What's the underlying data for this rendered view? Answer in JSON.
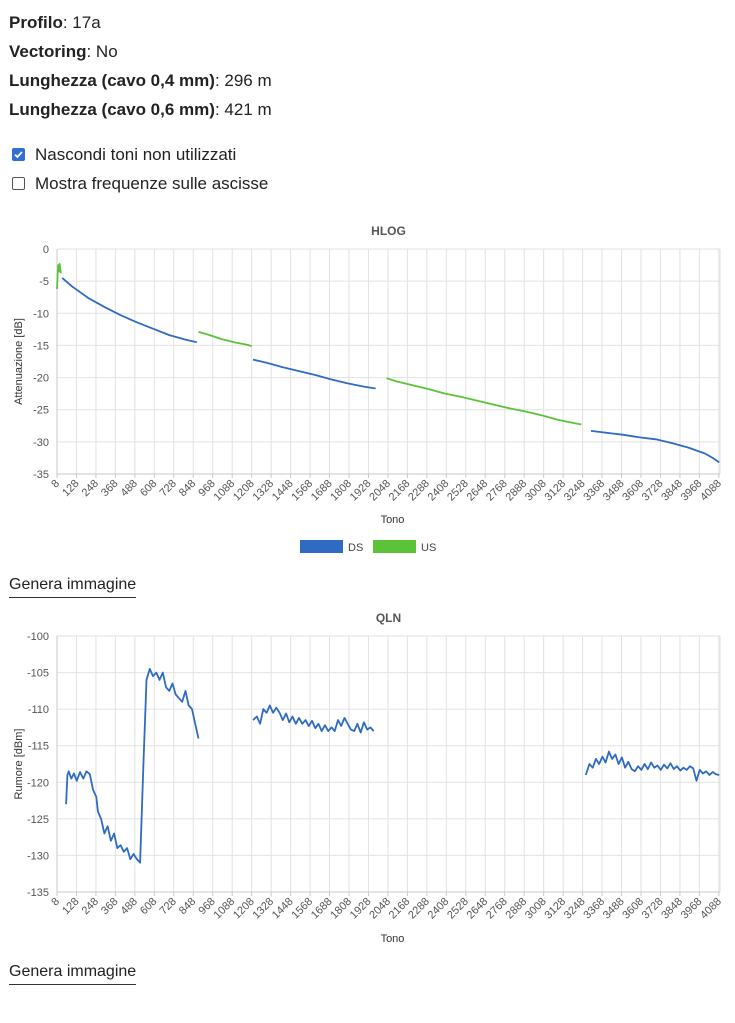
{
  "info": {
    "profile_label": "Profilo",
    "profile_value": "17a",
    "vectoring_label": "Vectoring",
    "vectoring_value": "No",
    "len04_label": "Lunghezza (cavo 0,4 mm)",
    "len04_value": "296 m",
    "len06_label": "Lunghezza (cavo 0,6 mm)",
    "len06_value": "421 m"
  },
  "options": {
    "hide_unused": {
      "label": "Nascondi toni non utilizzati",
      "checked": true
    },
    "show_freq": {
      "label": "Mostra frequenze sulle ascisse",
      "checked": false
    }
  },
  "buttons": {
    "generate_image": "Genera immagine"
  },
  "colors": {
    "ds": "#2f6bc0",
    "us": "#5cc23a"
  },
  "chart_data": [
    {
      "type": "line",
      "title": "HLOG",
      "xlabel": "Tono",
      "ylabel": "Attenuazione [dB]",
      "xlim": [
        8,
        4095
      ],
      "ylim": [
        -35,
        0
      ],
      "yticks": [
        0,
        -5,
        -10,
        -15,
        -20,
        -25,
        -30,
        -35
      ],
      "xticks": [
        8,
        128,
        248,
        368,
        488,
        608,
        728,
        848,
        968,
        1088,
        1208,
        1328,
        1448,
        1568,
        1688,
        1808,
        1928,
        2048,
        2168,
        2288,
        2408,
        2528,
        2648,
        2768,
        2888,
        3008,
        3128,
        3248,
        3368,
        3488,
        3608,
        3728,
        3848,
        3968,
        4088
      ],
      "grid": true,
      "legend_position": "bottom",
      "series": [
        {
          "name": "DS",
          "color": "#2f6bc0",
          "segments": [
            [
              [
                40,
                -4.5
              ],
              [
                100,
                -5.8
              ],
              [
                200,
                -7.6
              ],
              [
                300,
                -9.0
              ],
              [
                400,
                -10.3
              ],
              [
                500,
                -11.4
              ],
              [
                600,
                -12.4
              ],
              [
                700,
                -13.4
              ],
              [
                800,
                -14.1
              ],
              [
                870,
                -14.5
              ]
            ],
            [
              [
                1216,
                -17.2
              ],
              [
                1300,
                -17.7
              ],
              [
                1400,
                -18.4
              ],
              [
                1500,
                -19.0
              ],
              [
                1600,
                -19.6
              ],
              [
                1700,
                -20.3
              ],
              [
                1800,
                -20.9
              ],
              [
                1900,
                -21.4
              ],
              [
                1972,
                -21.7
              ]
            ],
            [
              [
                3300,
                -28.3
              ],
              [
                3400,
                -28.6
              ],
              [
                3500,
                -28.9
              ],
              [
                3600,
                -29.3
              ],
              [
                3700,
                -29.6
              ],
              [
                3800,
                -30.2
              ],
              [
                3900,
                -30.9
              ],
              [
                4000,
                -31.8
              ],
              [
                4050,
                -32.5
              ],
              [
                4090,
                -33.2
              ]
            ]
          ]
        },
        {
          "name": "US",
          "color": "#5cc23a",
          "segments": [
            [
              [
                8,
                -6.2
              ],
              [
                12,
                -4.0
              ],
              [
                16,
                -2.5
              ],
              [
                20,
                -3.5
              ],
              [
                24,
                -2.3
              ],
              [
                28,
                -3.0
              ],
              [
                32,
                -3.8
              ]
            ],
            [
              [
                880,
                -12.9
              ],
              [
                950,
                -13.4
              ],
              [
                1020,
                -14.0
              ],
              [
                1100,
                -14.5
              ],
              [
                1180,
                -14.9
              ],
              [
                1208,
                -15.1
              ]
            ],
            [
              [
                2040,
                -20.1
              ],
              [
                2100,
                -20.6
              ],
              [
                2200,
                -21.2
              ],
              [
                2300,
                -21.8
              ],
              [
                2400,
                -22.5
              ],
              [
                2500,
                -23.0
              ],
              [
                2600,
                -23.6
              ],
              [
                2700,
                -24.2
              ],
              [
                2800,
                -24.8
              ],
              [
                2900,
                -25.3
              ],
              [
                3000,
                -25.9
              ],
              [
                3100,
                -26.6
              ],
              [
                3200,
                -27.1
              ],
              [
                3240,
                -27.3
              ]
            ]
          ]
        }
      ]
    },
    {
      "type": "line",
      "title": "QLN",
      "xlabel": "Tono",
      "ylabel": "Rumore [dBm]",
      "xlim": [
        8,
        4095
      ],
      "ylim": [
        -135,
        -100
      ],
      "yticks": [
        -100,
        -105,
        -110,
        -115,
        -120,
        -125,
        -130,
        -135
      ],
      "xticks": [
        8,
        128,
        248,
        368,
        488,
        608,
        728,
        848,
        968,
        1088,
        1208,
        1328,
        1448,
        1568,
        1688,
        1808,
        1928,
        2048,
        2168,
        2288,
        2408,
        2528,
        2648,
        2768,
        2888,
        3008,
        3128,
        3248,
        3368,
        3488,
        3608,
        3728,
        3848,
        3968,
        4088
      ],
      "grid": true,
      "series": [
        {
          "name": "DS",
          "color": "#2f6bc0",
          "segments": [
            [
              [
                64,
                -123
              ],
              [
                72,
                -119
              ],
              [
                80,
                -118.5
              ],
              [
                96,
                -119.5
              ],
              [
                112,
                -118.8
              ],
              [
                130,
                -119.8
              ],
              [
                150,
                -118.6
              ],
              [
                170,
                -119.5
              ],
              [
                190,
                -118.5
              ],
              [
                210,
                -118.9
              ],
              [
                230,
                -121
              ],
              [
                250,
                -122
              ],
              [
                260,
                -124
              ],
              [
                280,
                -125
              ],
              [
                300,
                -127
              ],
              [
                320,
                -126
              ],
              [
                340,
                -128
              ],
              [
                360,
                -127
              ],
              [
                380,
                -129
              ],
              [
                400,
                -128.6
              ],
              [
                420,
                -129.5
              ],
              [
                440,
                -129
              ],
              [
                460,
                -130.5
              ],
              [
                480,
                -129.8
              ],
              [
                500,
                -130.5
              ],
              [
                520,
                -131
              ],
              [
                540,
                -118
              ],
              [
                560,
                -106
              ],
              [
                580,
                -104.5
              ],
              [
                600,
                -105.5
              ],
              [
                620,
                -105
              ],
              [
                640,
                -106
              ],
              [
                660,
                -105
              ],
              [
                680,
                -107
              ],
              [
                700,
                -107.5
              ],
              [
                720,
                -106.5
              ],
              [
                740,
                -108
              ],
              [
                760,
                -108.5
              ],
              [
                780,
                -109
              ],
              [
                800,
                -107.5
              ],
              [
                820,
                -109.5
              ],
              [
                840,
                -110
              ],
              [
                860,
                -112
              ],
              [
                880,
                -114
              ]
            ],
            [
              [
                1216,
                -111.5
              ],
              [
                1240,
                -111
              ],
              [
                1260,
                -112
              ],
              [
                1280,
                -110
              ],
              [
                1300,
                -110.5
              ],
              [
                1320,
                -109.5
              ],
              [
                1340,
                -110.5
              ],
              [
                1360,
                -109.8
              ],
              [
                1380,
                -110.5
              ],
              [
                1400,
                -111.5
              ],
              [
                1420,
                -110.6
              ],
              [
                1440,
                -111.8
              ],
              [
                1460,
                -111
              ],
              [
                1480,
                -112
              ],
              [
                1500,
                -111.2
              ],
              [
                1520,
                -112
              ],
              [
                1540,
                -111.5
              ],
              [
                1560,
                -112.3
              ],
              [
                1580,
                -111.6
              ],
              [
                1600,
                -112.6
              ],
              [
                1620,
                -112
              ],
              [
                1640,
                -113
              ],
              [
                1660,
                -112.2
              ],
              [
                1680,
                -113
              ],
              [
                1700,
                -112.5
              ],
              [
                1720,
                -113
              ],
              [
                1740,
                -111.5
              ],
              [
                1760,
                -112.3
              ],
              [
                1780,
                -111.2
              ],
              [
                1800,
                -112
              ],
              [
                1820,
                -112.8
              ],
              [
                1840,
                -113
              ],
              [
                1860,
                -112
              ],
              [
                1880,
                -113.2
              ],
              [
                1900,
                -111.8
              ],
              [
                1920,
                -112.8
              ],
              [
                1940,
                -112.5
              ],
              [
                1960,
                -113
              ]
            ],
            [
              [
                3268,
                -119
              ],
              [
                3290,
                -117.5
              ],
              [
                3310,
                -118
              ],
              [
                3330,
                -116.8
              ],
              [
                3350,
                -117.5
              ],
              [
                3370,
                -116.5
              ],
              [
                3390,
                -117.3
              ],
              [
                3410,
                -115.8
              ],
              [
                3430,
                -116.8
              ],
              [
                3450,
                -116.2
              ],
              [
                3470,
                -117.5
              ],
              [
                3490,
                -116.6
              ],
              [
                3510,
                -118
              ],
              [
                3530,
                -117.2
              ],
              [
                3550,
                -118.2
              ],
              [
                3570,
                -118.5
              ],
              [
                3590,
                -117.8
              ],
              [
                3610,
                -118.3
              ],
              [
                3630,
                -117.5
              ],
              [
                3650,
                -118.2
              ],
              [
                3670,
                -117.3
              ],
              [
                3690,
                -118
              ],
              [
                3710,
                -117.7
              ],
              [
                3730,
                -118.3
              ],
              [
                3750,
                -117.6
              ],
              [
                3770,
                -118.1
              ],
              [
                3790,
                -117.4
              ],
              [
                3810,
                -118.2
              ],
              [
                3830,
                -117.8
              ],
              [
                3850,
                -118.4
              ],
              [
                3870,
                -118
              ],
              [
                3890,
                -118.3
              ],
              [
                3910,
                -117.8
              ],
              [
                3930,
                -118.1
              ],
              [
                3950,
                -119.8
              ],
              [
                3970,
                -118.3
              ],
              [
                3990,
                -118.8
              ],
              [
                4010,
                -118.5
              ],
              [
                4030,
                -119
              ],
              [
                4050,
                -118.6
              ],
              [
                4070,
                -118.9
              ],
              [
                4090,
                -119
              ]
            ]
          ]
        }
      ]
    }
  ]
}
